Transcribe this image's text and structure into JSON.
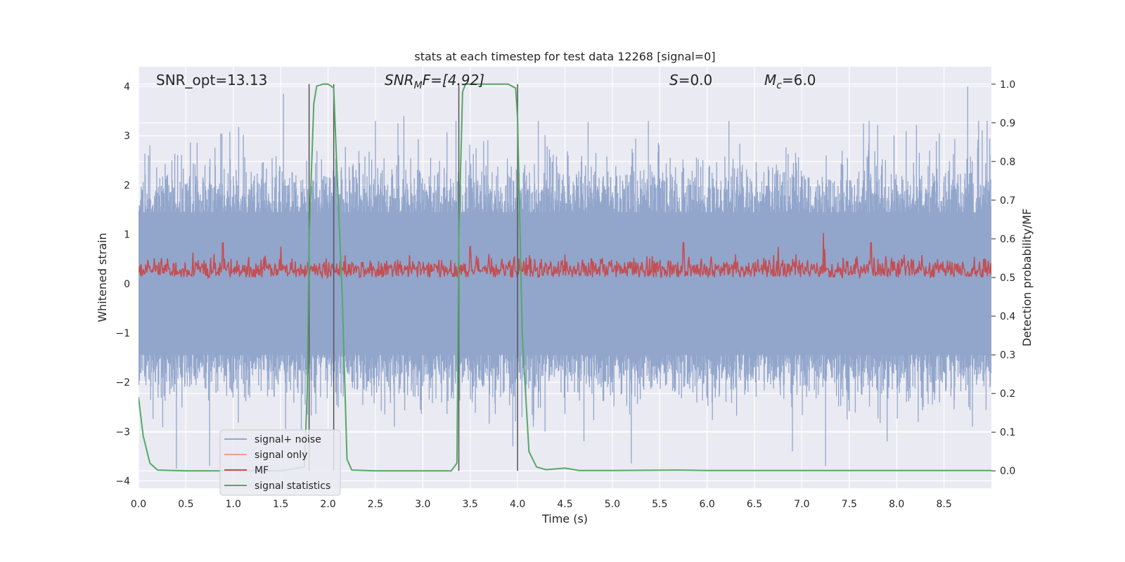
{
  "chart_data": {
    "type": "line",
    "title": "stats at each timestep for test data 12268 [signal=0]",
    "xlabel": "Time (s)",
    "ylabel": "Whitened strain",
    "y2label": "Detection probability/MF",
    "xlim": [
      0.0,
      9.0
    ],
    "ylim": [
      -4.15,
      4.4
    ],
    "y2lim": [
      -0.045,
      1.045
    ],
    "xticks": [
      0.0,
      0.5,
      1.0,
      1.5,
      2.0,
      2.5,
      3.0,
      3.5,
      4.0,
      4.5,
      5.0,
      5.5,
      6.0,
      6.5,
      7.0,
      7.5,
      8.0,
      8.5
    ],
    "xtick_labels": [
      "0.0",
      "0.5",
      "1.0",
      "1.5",
      "2.0",
      "2.5",
      "3.0",
      "3.5",
      "4.0",
      "4.5",
      "5.0",
      "5.5",
      "6.0",
      "6.5",
      "7.0",
      "7.5",
      "8.0",
      "8.5"
    ],
    "yticks": [
      4,
      3,
      2,
      1,
      0,
      -1,
      -2,
      -3,
      -4
    ],
    "ytick_labels": [
      "4",
      "3",
      "2",
      "1",
      "0",
      "−1",
      "−2",
      "−3",
      "−4"
    ],
    "y2ticks": [
      1.0,
      0.9,
      0.8,
      0.7,
      0.6,
      0.5,
      0.4,
      0.3,
      0.2,
      0.1,
      0.0
    ],
    "y2tick_labels": [
      "1.0",
      "0.9",
      "0.8",
      "0.7",
      "0.6",
      "0.5",
      "0.4",
      "0.3",
      "0.2",
      "0.1",
      "0.0"
    ],
    "annotations": {
      "snr_opt": "SNR_opt=13.13",
      "snr_mf_main": "SNR",
      "snr_mf_sub": "M",
      "snr_mf_rest": "F=[4.92]",
      "s_sym": "S",
      "s_val": "=0.0",
      "mc_sym": "M",
      "mc_sub": "c",
      "mc_val": "=6.0"
    },
    "vertical_lines": [
      1.8,
      2.06,
      3.38,
      4.0
    ],
    "legend": {
      "position": "lower-left",
      "entries": [
        "signal+ noise",
        "signal only",
        "MF",
        "signal statistics"
      ]
    },
    "colors": {
      "noise": "#92a6cc",
      "signal_only": "#e8a38a",
      "mf": "#c44e52",
      "stat": "#55a868",
      "vline": "#555555",
      "grid": "#ffffff",
      "axes_bg": "#eaeaf2"
    },
    "series": [
      {
        "name": "signal+ noise",
        "description": "dense whitened strain trace, approx. +/-1.5 band with spikes to +4 / -3.8",
        "x_range": [
          0.0,
          9.0
        ],
        "spikes_upper": [
          [
            0.12,
            2.8
          ],
          [
            0.88,
            3.05
          ],
          [
            1.53,
            3.85
          ],
          [
            2.5,
            3.3
          ],
          [
            2.8,
            3.4
          ],
          [
            3.35,
            3.3
          ],
          [
            5.38,
            3.3
          ],
          [
            6.23,
            3.3
          ],
          [
            7.65,
            3.25
          ],
          [
            8.1,
            3.1
          ],
          [
            8.45,
            3.05
          ],
          [
            8.75,
            4.0
          ]
        ],
        "spikes_lower": [
          [
            0.4,
            -3.75
          ],
          [
            0.75,
            -3.7
          ],
          [
            1.8,
            -3.0
          ],
          [
            3.95,
            -3.3
          ],
          [
            4.7,
            -3.2
          ],
          [
            5.2,
            -3.65
          ],
          [
            6.9,
            -3.4
          ],
          [
            7.25,
            -3.7
          ],
          [
            7.9,
            -3.2
          ],
          [
            8.8,
            -2.9
          ]
        ]
      },
      {
        "name": "signal only",
        "description": "no visible signal (signal=0)",
        "values": []
      },
      {
        "name": "MF",
        "description": "matched-filter output on secondary axis, approx. 0.5 to 0.55 baseline with peaks up to ~0.6",
        "baseline_range": [
          0.5,
          0.56
        ],
        "peaks": [
          [
            0.89,
            0.59
          ],
          [
            1.5,
            0.58
          ],
          [
            3.5,
            0.58
          ],
          [
            4.5,
            0.56
          ],
          [
            5.75,
            0.59
          ],
          [
            6.3,
            0.56
          ],
          [
            6.75,
            0.58
          ],
          [
            7.23,
            0.615
          ],
          [
            7.73,
            0.59
          ]
        ]
      },
      {
        "name": "signal statistics",
        "x": [
          0.0,
          0.05,
          0.12,
          0.2,
          0.5,
          1.0,
          1.5,
          1.75,
          1.78,
          1.8,
          1.85,
          1.88,
          1.95,
          2.0,
          2.06,
          2.09,
          2.15,
          2.2,
          2.25,
          2.5,
          3.0,
          3.3,
          3.36,
          3.38,
          3.42,
          3.45,
          3.5,
          3.7,
          3.9,
          3.98,
          4.0,
          4.05,
          4.12,
          4.2,
          4.3,
          4.4,
          4.5,
          4.65,
          5.0,
          5.7,
          6.0,
          7.0,
          8.0,
          9.0
        ],
        "y": [
          0.19,
          0.09,
          0.02,
          0.002,
          0.0,
          0.0,
          0.0,
          0.01,
          0.2,
          0.6,
          0.95,
          0.995,
          1.0,
          1.0,
          0.99,
          0.8,
          0.45,
          0.03,
          0.002,
          0.0,
          0.0,
          0.0,
          0.02,
          0.6,
          0.98,
          1.0,
          1.0,
          1.0,
          1.0,
          0.99,
          0.91,
          0.35,
          0.05,
          0.01,
          0.003,
          0.005,
          0.007,
          0.001,
          0.001,
          0.002,
          0.001,
          0.001,
          0.001,
          0.001
        ]
      }
    ]
  }
}
